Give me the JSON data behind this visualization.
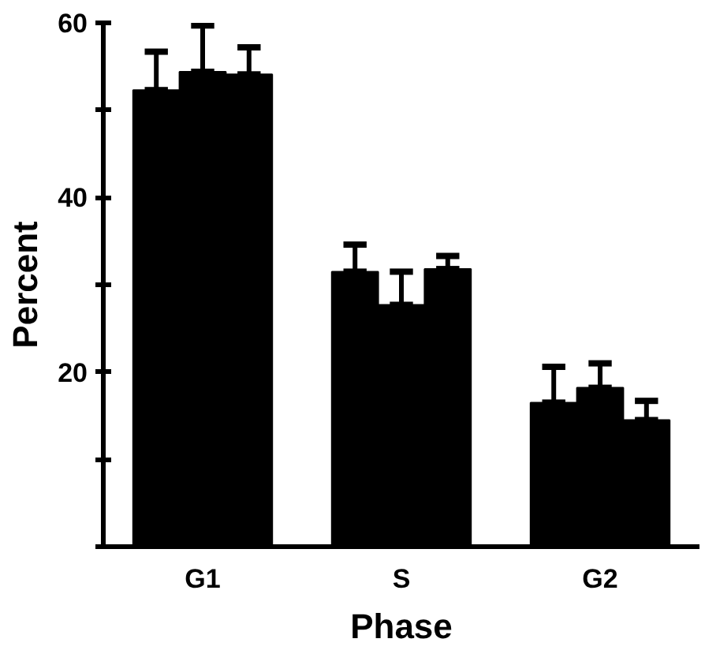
{
  "chart_data": {
    "type": "bar",
    "xlabel": "Phase",
    "ylabel": "Percent",
    "categories": [
      "G1",
      "S",
      "G2"
    ],
    "series": [
      {
        "color": "#000000",
        "values": [
          52.3,
          31.5,
          16.5
        ],
        "errors": [
          [
            52.3,
            56.7
          ],
          [
            31.5,
            34.6
          ],
          [
            16.5,
            20.6
          ]
        ]
      },
      {
        "color": "#000000",
        "values": [
          54.4,
          27.7,
          18.2
        ],
        "errors": [
          [
            54.4,
            59.7
          ],
          [
            27.7,
            31.5
          ],
          [
            18.2,
            21.0
          ]
        ]
      },
      {
        "color": "#000000",
        "values": [
          54.1,
          31.8,
          14.5
        ],
        "errors": [
          [
            54.1,
            57.2
          ],
          [
            31.8,
            33.3
          ],
          [
            14.5,
            16.7
          ]
        ]
      }
    ],
    "ylim": [
      0,
      60
    ],
    "yticks": [
      {
        "value": 0,
        "label": null
      },
      {
        "value": 10,
        "label": null
      },
      20,
      {
        "value": 30,
        "label": null
      },
      40,
      {
        "value": 50,
        "label": null
      },
      60
    ],
    "grid": false,
    "legend": false
  }
}
